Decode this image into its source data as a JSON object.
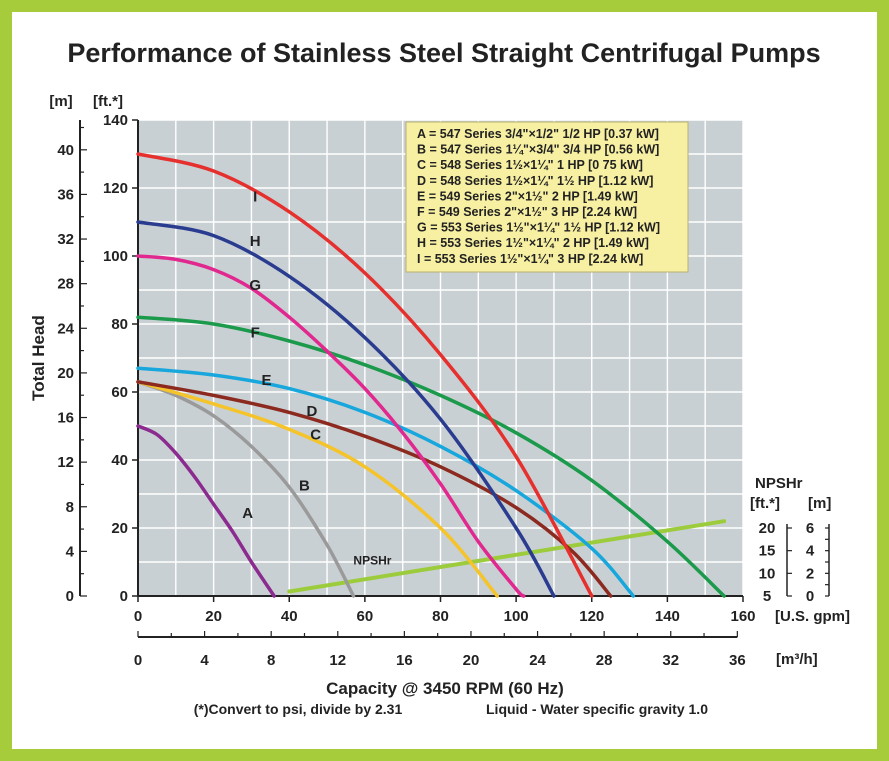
{
  "colors": {
    "border": "#a6cc3b",
    "plot_bg": "#c9d0d4",
    "grid": "#ffffff",
    "legend_bg": "#f7f0a3",
    "npsh_line": "#9ccc3c"
  },
  "chart_data": {
    "type": "line",
    "title": "Performance of Stainless Steel Straight Centrifugal Pumps",
    "xlabel": "Capacity @ 3450 RPM (60 Hz)",
    "ylabel": "Total Head",
    "x_unit": "[U.S. gpm]",
    "x2_unit": "[m³/h]",
    "y_unit_ft": "[ft.*]",
    "y_unit_m": "[m]",
    "xlim": [
      0,
      160
    ],
    "ylim": [
      0,
      140
    ],
    "x_ticks": [
      0,
      20,
      40,
      60,
      80,
      100,
      120,
      140,
      160
    ],
    "x2_ticks": [
      0,
      4,
      8,
      12,
      16,
      20,
      24,
      28,
      32,
      36
    ],
    "y_ticks_ft": [
      0,
      20,
      40,
      60,
      80,
      100,
      120,
      140
    ],
    "y_ticks_m": [
      0,
      4,
      8,
      12,
      16,
      20,
      24,
      28,
      32,
      36,
      40
    ],
    "grid": true,
    "legend_position": "top-right",
    "notes": [
      "(*)Convert to psi, divide by 2.31",
      "Liquid - Water specific gravity 1.0"
    ],
    "series": [
      {
        "name": "A",
        "legend": "A = 547 Series 3/4\"×1/2\" 1/2 HP [0.37 kW]",
        "color": "#8b2a8f",
        "x": [
          0,
          5,
          10,
          15,
          20,
          25,
          30,
          36
        ],
        "y": [
          50,
          47.5,
          42,
          35,
          27,
          19,
          10,
          0
        ],
        "label_x": 29,
        "label_y": 23
      },
      {
        "name": "B",
        "legend": "B = 547 Series 1¼\"×3/4\" 3/4 HP [0.56 kW]",
        "color": "#9a9a9a",
        "x": [
          0,
          10,
          20,
          30,
          40,
          50,
          57
        ],
        "y": [
          63,
          59,
          53,
          44,
          32,
          15,
          0
        ],
        "label_x": 44,
        "label_y": 31
      },
      {
        "name": "C",
        "legend": "C = 548 Series 1½×1¼\" 1 HP [0 75 kW]",
        "color": "#f5c32a",
        "x": [
          0,
          20,
          40,
          60,
          80,
          95
        ],
        "y": [
          63,
          56.5,
          49,
          38,
          20,
          0
        ],
        "label_x": 47,
        "label_y": 46
      },
      {
        "name": "D",
        "legend": "D = 548 Series 1½×1¼\" 1½ HP [1.12 kW]",
        "color": "#8c2a20",
        "x": [
          0,
          20,
          40,
          60,
          80,
          100,
          115,
          125
        ],
        "y": [
          63,
          59,
          54,
          47,
          38,
          26,
          13,
          0
        ],
        "label_x": 46,
        "label_y": 53
      },
      {
        "name": "E",
        "legend": "E = 549 Series 2\"×1½\" 2 HP [1.49 kW]",
        "color": "#17a7dc",
        "x": [
          0,
          20,
          40,
          60,
          80,
          100,
          120,
          131
        ],
        "y": [
          67,
          65,
          61,
          54,
          44,
          31,
          14,
          0
        ],
        "label_x": 34,
        "label_y": 62
      },
      {
        "name": "F",
        "legend": "F = 549 Series 2\"×1½\" 3 HP [2.24 kW]",
        "color": "#1a9a4a",
        "x": [
          0,
          20,
          40,
          60,
          80,
          100,
          120,
          140,
          155
        ],
        "y": [
          82,
          80,
          75,
          68,
          59,
          48,
          34,
          16,
          0
        ],
        "label_x": 31,
        "label_y": 76
      },
      {
        "name": "G",
        "legend": "G = 553 Series 1½\"×1¼\" 1½ HP [1.12 kW]",
        "color": "#e0288f",
        "x": [
          0,
          10,
          20,
          30,
          40,
          50,
          60,
          70,
          80,
          90,
          100,
          102
        ],
        "y": [
          100,
          99,
          96,
          90.5,
          82,
          72,
          61,
          48,
          33,
          16,
          2,
          0
        ],
        "label_x": 31,
        "label_y": 90
      },
      {
        "name": "H",
        "legend": "H = 553 Series 1½\"×1¼\" 2 HP [1.49 kW]",
        "color": "#2a3c8f",
        "x": [
          0,
          20,
          40,
          60,
          80,
          100,
          110
        ],
        "y": [
          110,
          106,
          94,
          76,
          52,
          20,
          0
        ],
        "label_x": 31,
        "label_y": 103
      },
      {
        "name": "I",
        "legend": "I = 553 Series 1½\"×1¼\" 3 HP [2.24 kW]",
        "color": "#e5302e",
        "x": [
          0,
          20,
          40,
          60,
          80,
          100,
          120
        ],
        "y": [
          130,
          125,
          113,
          95,
          71,
          41,
          0
        ],
        "label_x": 31,
        "label_y": 116
      }
    ],
    "npshr": {
      "name": "NPSHr",
      "title": "NPSHr",
      "unit_ft": "[ft.*]",
      "unit_m": "[m]",
      "ticks_ft": [
        5,
        10,
        15,
        20
      ],
      "ticks_m": [
        0,
        2,
        4,
        6
      ],
      "x": [
        40,
        155
      ],
      "ft": [
        6,
        21.5
      ],
      "label_x": 62,
      "label_ft": 12
    }
  }
}
